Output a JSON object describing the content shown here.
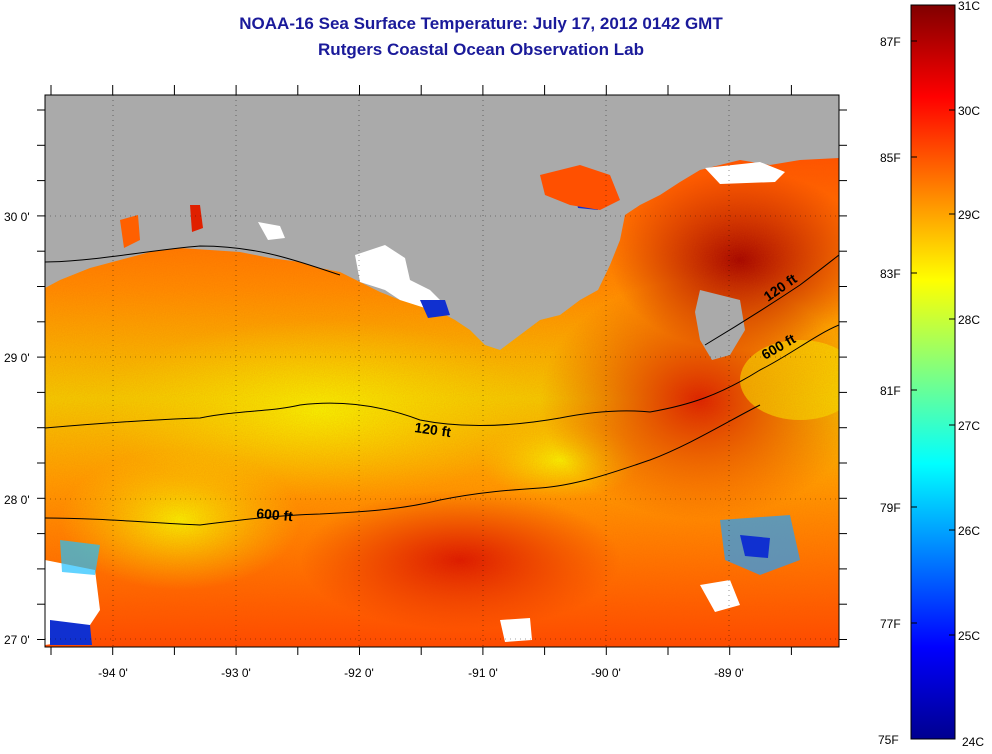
{
  "title": {
    "line1": "NOAA-16 Sea Surface Temperature:  July 17, 2012 0142 GMT",
    "line2": "Rutgers Coastal Ocean Observation Lab"
  },
  "map": {
    "longitude_labels": [
      "-94 0'",
      "-93 0'",
      "-92 0'",
      "-91 0'",
      "-90 0'",
      "-89 0'"
    ],
    "latitude_labels": [
      "30 0'",
      "29 0'",
      "28 0'",
      "27 0'"
    ],
    "contours": [
      {
        "label": "120 ft"
      },
      {
        "label": "600 ft"
      },
      {
        "label": "120 ft"
      },
      {
        "label": "600 ft"
      }
    ],
    "land_color": "#aaaaaa",
    "cloud_color": "#ffffff"
  },
  "colorbar": {
    "celsius_labels": [
      "31C",
      "30C",
      "29C",
      "28C",
      "27C",
      "26C",
      "25C",
      "24C"
    ],
    "fahrenheit_labels": [
      "87F",
      "85F",
      "83F",
      "81F",
      "79F",
      "77F",
      "75F"
    ],
    "colormap": "jet"
  }
}
